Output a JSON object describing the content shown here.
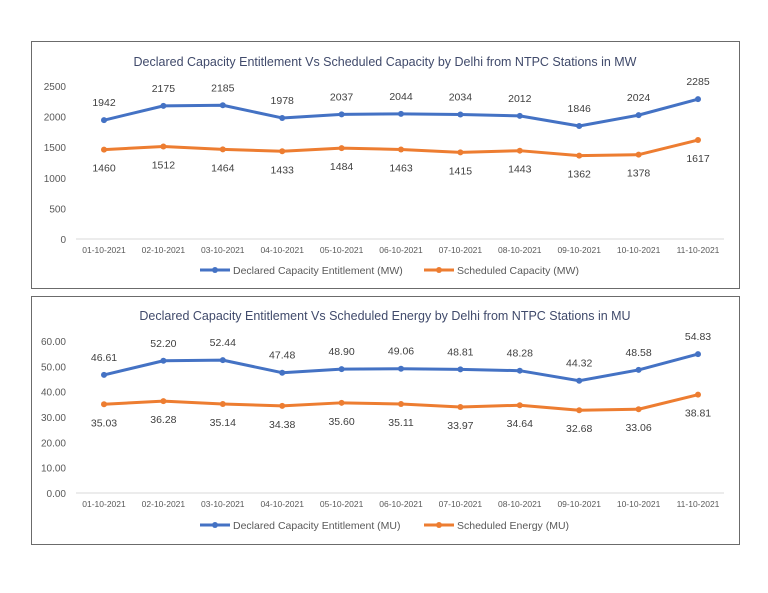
{
  "chart_data": [
    {
      "type": "line",
      "title": "Declared Capacity Entitlement Vs Scheduled Capacity by Delhi from NTPC Stations in MW",
      "categories": [
        "01-10-2021",
        "02-10-2021",
        "03-10-2021",
        "04-10-2021",
        "05-10-2021",
        "06-10-2021",
        "07-10-2021",
        "08-10-2021",
        "09-10-2021",
        "10-10-2021",
        "11-10-2021"
      ],
      "ylim": [
        0,
        2500
      ],
      "yticks": [
        "0",
        "500",
        "1000",
        "1500",
        "2000",
        "2500"
      ],
      "grid": false,
      "legend": "bottom",
      "series": [
        {
          "name": "Declared Capacity Entitlement (MW)",
          "color": "#4472C4",
          "values": [
            1942,
            2175,
            2185,
            1978,
            2037,
            2044,
            2034,
            2012,
            1846,
            2024,
            2285
          ],
          "labels": [
            "1942",
            "2175",
            "2185",
            "1978",
            "2037",
            "2044",
            "2034",
            "2012",
            "1846",
            "2024",
            "2285"
          ]
        },
        {
          "name": "Scheduled Capacity (MW)",
          "color": "#ED7D31",
          "values": [
            1460,
            1512,
            1464,
            1433,
            1484,
            1463,
            1415,
            1443,
            1362,
            1378,
            1617
          ],
          "labels": [
            "1460",
            "1512",
            "1464",
            "1433",
            "1484",
            "1463",
            "1415",
            "1443",
            "1362",
            "1378",
            "1617"
          ]
        }
      ]
    },
    {
      "type": "line",
      "title": "Declared Capacity Entitlement Vs Scheduled Energy by Delhi from NTPC Stations in MU",
      "categories": [
        "01-10-2021",
        "02-10-2021",
        "03-10-2021",
        "04-10-2021",
        "05-10-2021",
        "06-10-2021",
        "07-10-2021",
        "08-10-2021",
        "09-10-2021",
        "10-10-2021",
        "11-10-2021"
      ],
      "ylim": [
        0,
        60
      ],
      "yticks": [
        "0.00",
        "10.00",
        "20.00",
        "30.00",
        "40.00",
        "50.00",
        "60.00"
      ],
      "grid": false,
      "legend": "bottom",
      "series": [
        {
          "name": "Declared Capacity Entitlement (MU)",
          "color": "#4472C4",
          "values": [
            46.61,
            52.2,
            52.44,
            47.48,
            48.9,
            49.06,
            48.81,
            48.28,
            44.32,
            48.58,
            54.83
          ],
          "labels": [
            "46.61",
            "52.20",
            "52.44",
            "47.48",
            "48.90",
            "49.06",
            "48.81",
            "48.28",
            "44.32",
            "48.58",
            "54.83"
          ]
        },
        {
          "name": "Scheduled Energy (MU)",
          "color": "#ED7D31",
          "values": [
            35.03,
            36.28,
            35.14,
            34.38,
            35.6,
            35.11,
            33.97,
            34.64,
            32.68,
            33.06,
            38.81
          ],
          "labels": [
            "35.03",
            "36.28",
            "35.14",
            "34.38",
            "35.60",
            "35.11",
            "33.97",
            "34.64",
            "32.68",
            "33.06",
            "38.81"
          ]
        }
      ]
    }
  ]
}
